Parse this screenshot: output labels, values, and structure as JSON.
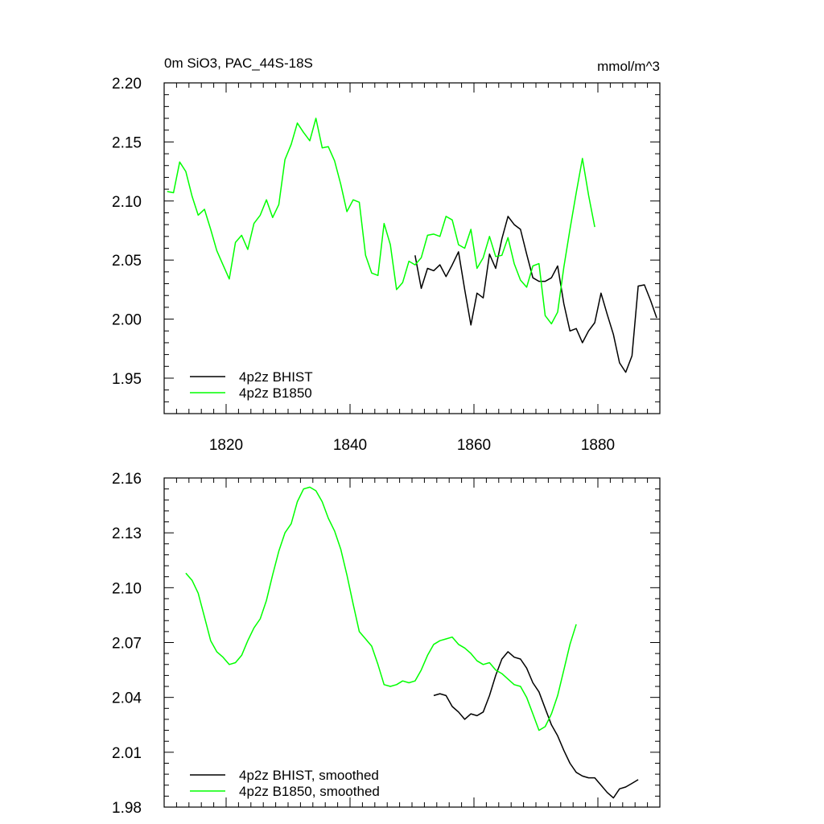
{
  "chart_data": [
    {
      "type": "line",
      "title": "0m SiO3, PAC_44S-18S",
      "units": "mmol/m^3",
      "xlim": [
        1810,
        1890
      ],
      "ylim": [
        1.92,
        2.2
      ],
      "xticks": [
        1820,
        1840,
        1860,
        1880
      ],
      "xtick_labels": [
        "1820",
        "1840",
        "1860",
        "1880"
      ],
      "yticks": [
        1.95,
        2.0,
        2.05,
        2.1,
        2.15,
        2.2
      ],
      "ytick_labels": [
        "1.95",
        "2.00",
        "2.05",
        "2.10",
        "2.15",
        "2.20"
      ],
      "legend_position": "bottom-left",
      "series": [
        {
          "name": "4p2z BHIST",
          "color": "#000000",
          "points": [
            [
              1850.5,
              2.054
            ],
            [
              1851.5,
              2.026
            ],
            [
              1852.5,
              2.043
            ],
            [
              1853.5,
              2.041
            ],
            [
              1854.5,
              2.046
            ],
            [
              1855.5,
              2.036
            ],
            [
              1856.5,
              2.046
            ],
            [
              1857.5,
              2.057
            ],
            [
              1858.5,
              2.025
            ],
            [
              1859.5,
              1.995
            ],
            [
              1860.5,
              2.022
            ],
            [
              1861.5,
              2.018
            ],
            [
              1862.5,
              2.055
            ],
            [
              1863.5,
              2.043
            ],
            [
              1864.5,
              2.068
            ],
            [
              1865.5,
              2.087
            ],
            [
              1866.5,
              2.08
            ],
            [
              1867.5,
              2.076
            ],
            [
              1868.5,
              2.055
            ],
            [
              1869.5,
              2.035
            ],
            [
              1870.5,
              2.032
            ],
            [
              1871.5,
              2.032
            ],
            [
              1872.5,
              2.035
            ],
            [
              1873.5,
              2.045
            ],
            [
              1874.5,
              2.013
            ],
            [
              1875.5,
              1.99
            ],
            [
              1876.5,
              1.992
            ],
            [
              1877.5,
              1.98
            ],
            [
              1878.5,
              1.99
            ],
            [
              1879.5,
              1.997
            ],
            [
              1880.5,
              2.022
            ],
            [
              1881.5,
              2.004
            ],
            [
              1882.5,
              1.987
            ],
            [
              1883.5,
              1.963
            ],
            [
              1884.5,
              1.955
            ],
            [
              1885.5,
              1.969
            ],
            [
              1886.5,
              2.028
            ],
            [
              1887.5,
              2.029
            ],
            [
              1888.5,
              2.016
            ],
            [
              1889.5,
              2.001
            ]
          ]
        },
        {
          "name": "4p2z B1850",
          "color": "#00ff00",
          "points": [
            [
              1810.5,
              2.108
            ],
            [
              1811.5,
              2.107
            ],
            [
              1812.5,
              2.133
            ],
            [
              1813.5,
              2.125
            ],
            [
              1814.5,
              2.104
            ],
            [
              1815.5,
              2.088
            ],
            [
              1816.5,
              2.093
            ],
            [
              1817.5,
              2.076
            ],
            [
              1818.5,
              2.058
            ],
            [
              1819.5,
              2.046
            ],
            [
              1820.5,
              2.034
            ],
            [
              1821.5,
              2.065
            ],
            [
              1822.5,
              2.071
            ],
            [
              1823.5,
              2.059
            ],
            [
              1824.5,
              2.081
            ],
            [
              1825.5,
              2.088
            ],
            [
              1826.5,
              2.101
            ],
            [
              1827.5,
              2.086
            ],
            [
              1828.5,
              2.097
            ],
            [
              1829.5,
              2.135
            ],
            [
              1830.5,
              2.148
            ],
            [
              1831.5,
              2.166
            ],
            [
              1832.5,
              2.158
            ],
            [
              1833.5,
              2.151
            ],
            [
              1834.5,
              2.17
            ],
            [
              1835.5,
              2.145
            ],
            [
              1836.5,
              2.146
            ],
            [
              1837.5,
              2.134
            ],
            [
              1838.5,
              2.114
            ],
            [
              1839.5,
              2.091
            ],
            [
              1840.5,
              2.101
            ],
            [
              1841.5,
              2.099
            ],
            [
              1842.5,
              2.054
            ],
            [
              1843.5,
              2.039
            ],
            [
              1844.5,
              2.037
            ],
            [
              1845.5,
              2.081
            ],
            [
              1846.5,
              2.063
            ],
            [
              1847.5,
              2.025
            ],
            [
              1848.5,
              2.031
            ],
            [
              1849.5,
              2.049
            ],
            [
              1850.5,
              2.046
            ],
            [
              1851.5,
              2.052
            ],
            [
              1852.5,
              2.071
            ],
            [
              1853.5,
              2.072
            ],
            [
              1854.5,
              2.07
            ],
            [
              1855.5,
              2.087
            ],
            [
              1856.5,
              2.084
            ],
            [
              1857.5,
              2.063
            ],
            [
              1858.5,
              2.06
            ],
            [
              1859.5,
              2.076
            ],
            [
              1860.5,
              2.043
            ],
            [
              1861.5,
              2.052
            ],
            [
              1862.5,
              2.07
            ],
            [
              1863.5,
              2.053
            ],
            [
              1864.5,
              2.054
            ],
            [
              1865.5,
              2.069
            ],
            [
              1866.5,
              2.047
            ],
            [
              1867.5,
              2.033
            ],
            [
              1868.5,
              2.027
            ],
            [
              1869.5,
              2.045
            ],
            [
              1870.5,
              2.047
            ],
            [
              1871.5,
              2.003
            ],
            [
              1872.5,
              1.996
            ],
            [
              1873.5,
              2.006
            ],
            [
              1874.5,
              2.044
            ],
            [
              1875.5,
              2.076
            ],
            [
              1876.5,
              2.107
            ],
            [
              1877.5,
              2.136
            ],
            [
              1878.5,
              2.105
            ],
            [
              1879.5,
              2.078
            ]
          ]
        }
      ]
    },
    {
      "type": "line",
      "title": "",
      "xlim": [
        1810,
        1890
      ],
      "ylim": [
        1.98,
        2.16
      ],
      "xticks": [
        1820,
        1840,
        1860,
        1880
      ],
      "yticks": [
        1.98,
        2.01,
        2.04,
        2.07,
        2.1,
        2.13,
        2.16
      ],
      "ytick_labels": [
        "1.98",
        "2.01",
        "2.04",
        "2.07",
        "2.10",
        "2.13",
        "2.16"
      ],
      "legend_position": "bottom-left",
      "series": [
        {
          "name": "4p2z BHIST, smoothed",
          "color": "#000000",
          "points": [
            [
              1853.5,
              2.041
            ],
            [
              1854.5,
              2.042
            ],
            [
              1855.5,
              2.041
            ],
            [
              1856.5,
              2.035
            ],
            [
              1857.5,
              2.032
            ],
            [
              1858.5,
              2.028
            ],
            [
              1859.5,
              2.031
            ],
            [
              1860.5,
              2.03
            ],
            [
              1861.5,
              2.032
            ],
            [
              1862.5,
              2.041
            ],
            [
              1863.5,
              2.052
            ],
            [
              1864.5,
              2.061
            ],
            [
              1865.5,
              2.065
            ],
            [
              1866.5,
              2.062
            ],
            [
              1867.5,
              2.061
            ],
            [
              1868.5,
              2.056
            ],
            [
              1869.5,
              2.048
            ],
            [
              1870.5,
              2.043
            ],
            [
              1871.5,
              2.034
            ],
            [
              1872.5,
              2.025
            ],
            [
              1873.5,
              2.019
            ],
            [
              1874.5,
              2.011
            ],
            [
              1875.5,
              2.004
            ],
            [
              1876.5,
              1.999
            ],
            [
              1877.5,
              1.997
            ],
            [
              1878.5,
              1.996
            ],
            [
              1879.5,
              1.996
            ],
            [
              1880.5,
              1.992
            ],
            [
              1881.5,
              1.988
            ],
            [
              1882.5,
              1.985
            ],
            [
              1883.5,
              1.99
            ],
            [
              1884.5,
              1.991
            ],
            [
              1885.5,
              1.993
            ],
            [
              1886.5,
              1.995
            ]
          ]
        },
        {
          "name": "4p2z B1850, smoothed",
          "color": "#00ff00",
          "points": [
            [
              1813.5,
              2.108
            ],
            [
              1814.5,
              2.104
            ],
            [
              1815.5,
              2.097
            ],
            [
              1816.5,
              2.084
            ],
            [
              1817.5,
              2.071
            ],
            [
              1818.5,
              2.065
            ],
            [
              1819.5,
              2.062
            ],
            [
              1820.5,
              2.058
            ],
            [
              1821.5,
              2.059
            ],
            [
              1822.5,
              2.063
            ],
            [
              1823.5,
              2.071
            ],
            [
              1824.5,
              2.078
            ],
            [
              1825.5,
              2.083
            ],
            [
              1826.5,
              2.093
            ],
            [
              1827.5,
              2.107
            ],
            [
              1828.5,
              2.12
            ],
            [
              1829.5,
              2.13
            ],
            [
              1830.5,
              2.135
            ],
            [
              1831.5,
              2.147
            ],
            [
              1832.5,
              2.154
            ],
            [
              1833.5,
              2.155
            ],
            [
              1834.5,
              2.153
            ],
            [
              1835.5,
              2.147
            ],
            [
              1836.5,
              2.138
            ],
            [
              1837.5,
              2.131
            ],
            [
              1838.5,
              2.121
            ],
            [
              1839.5,
              2.107
            ],
            [
              1840.5,
              2.091
            ],
            [
              1841.5,
              2.076
            ],
            [
              1842.5,
              2.072
            ],
            [
              1843.5,
              2.068
            ],
            [
              1844.5,
              2.058
            ],
            [
              1845.5,
              2.047
            ],
            [
              1846.5,
              2.046
            ],
            [
              1847.5,
              2.047
            ],
            [
              1848.5,
              2.049
            ],
            [
              1849.5,
              2.048
            ],
            [
              1850.5,
              2.049
            ],
            [
              1851.5,
              2.055
            ],
            [
              1852.5,
              2.063
            ],
            [
              1853.5,
              2.069
            ],
            [
              1854.5,
              2.071
            ],
            [
              1855.5,
              2.072
            ],
            [
              1856.5,
              2.073
            ],
            [
              1857.5,
              2.069
            ],
            [
              1858.5,
              2.067
            ],
            [
              1859.5,
              2.064
            ],
            [
              1860.5,
              2.06
            ],
            [
              1861.5,
              2.058
            ],
            [
              1862.5,
              2.059
            ],
            [
              1863.5,
              2.055
            ],
            [
              1864.5,
              2.053
            ],
            [
              1865.5,
              2.05
            ],
            [
              1866.5,
              2.047
            ],
            [
              1867.5,
              2.046
            ],
            [
              1868.5,
              2.04
            ],
            [
              1869.5,
              2.031
            ],
            [
              1870.5,
              2.022
            ],
            [
              1871.5,
              2.024
            ],
            [
              1872.5,
              2.031
            ],
            [
              1873.5,
              2.041
            ],
            [
              1874.5,
              2.055
            ],
            [
              1875.5,
              2.069
            ],
            [
              1876.5,
              2.08
            ]
          ]
        }
      ]
    }
  ]
}
